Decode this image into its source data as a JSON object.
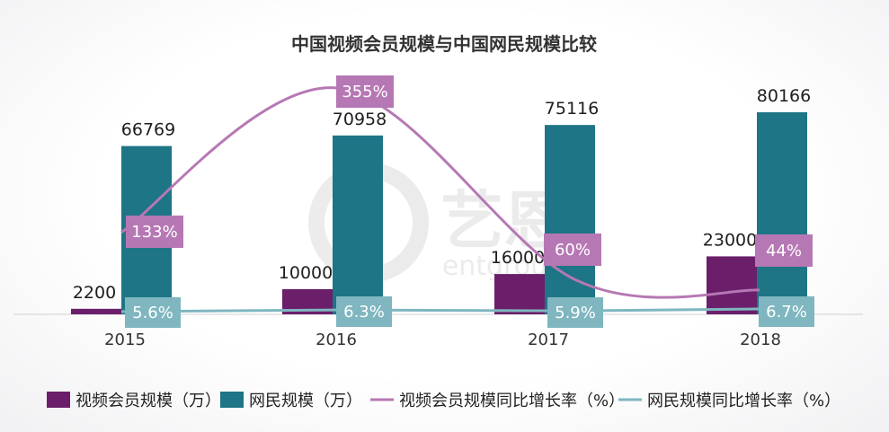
{
  "chart_data": {
    "type": "bar",
    "title": "中国视频会员规模与中国网民规模比较",
    "categories": [
      "2015",
      "2016",
      "2017",
      "2018"
    ],
    "series": [
      {
        "name": "视频会员规模（万）",
        "kind": "bar",
        "color": "#6b1f6b",
        "values": [
          2200,
          10000,
          16000,
          23000
        ]
      },
      {
        "name": "网民规模（万）",
        "kind": "bar",
        "color": "#1e7585",
        "values": [
          66769,
          70958,
          75116,
          80166
        ]
      },
      {
        "name": "视频会员规模同比增长率（%）",
        "kind": "line",
        "color": "#b678b4",
        "values": [
          133,
          355,
          60,
          44
        ],
        "labels": [
          "133%",
          "355%",
          "60%",
          "44%"
        ]
      },
      {
        "name": "网民规模同比增长率（%）",
        "kind": "line",
        "color": "#7fb6c0",
        "values": [
          5.6,
          6.3,
          5.9,
          6.7
        ],
        "labels": [
          "5.6%",
          "6.3%",
          "5.9%",
          "6.7%"
        ]
      }
    ],
    "legend": "bottom",
    "grid": false
  }
}
